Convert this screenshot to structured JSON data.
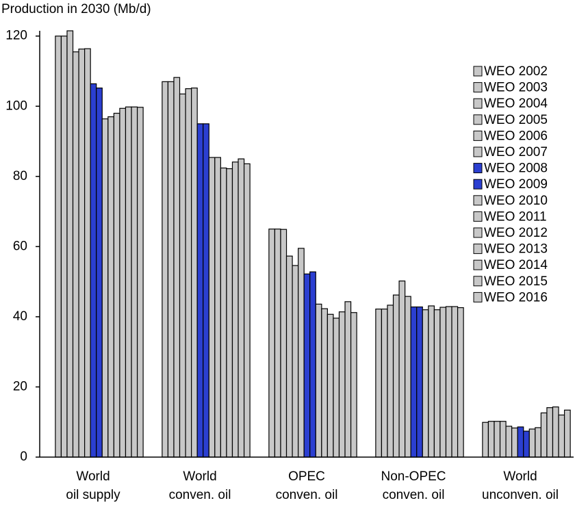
{
  "chart_data": {
    "type": "bar",
    "title": "Production in 2030 (Mb/d)",
    "categories": [
      "World\noil supply",
      "World\nconven. oil",
      "OPEC\nconven. oil",
      "Non-OPEC\nconven. oil",
      "World\nunconven. oil"
    ],
    "ylim": [
      0,
      121.5
    ],
    "yticks": [
      0,
      20,
      40,
      60,
      80,
      100,
      120
    ],
    "series": [
      {
        "name": "WEO 2002",
        "color": "#c8c8c8",
        "values": [
          120,
          107,
          65,
          42.2,
          9.9
        ]
      },
      {
        "name": "WEO 2003",
        "color": "#c8c8c8",
        "values": [
          120,
          107,
          65,
          42.2,
          10.2
        ]
      },
      {
        "name": "WEO 2004",
        "color": "#c8c8c8",
        "values": [
          121.5,
          108.2,
          64.9,
          43.3,
          10.2
        ]
      },
      {
        "name": "WEO 2005",
        "color": "#c8c8c8",
        "values": [
          115.5,
          103.5,
          57.3,
          46.2,
          10.2
        ]
      },
      {
        "name": "WEO 2006",
        "color": "#c8c8c8",
        "values": [
          116.3,
          105,
          54.6,
          50.2,
          8.8
        ]
      },
      {
        "name": "WEO 2007",
        "color": "#c8c8c8",
        "values": [
          116.4,
          105.2,
          59.5,
          45.8,
          8.3
        ]
      },
      {
        "name": "WEO 2008",
        "color": "#2b3fd1",
        "values": [
          106.4,
          95,
          52.2,
          42.8,
          8.6
        ]
      },
      {
        "name": "WEO 2009",
        "color": "#2b3fd1",
        "values": [
          105.2,
          95,
          52.8,
          42.8,
          7.4
        ]
      },
      {
        "name": "WEO 2010",
        "color": "#c8c8c8",
        "values": [
          96.4,
          85.4,
          43.6,
          42,
          8
        ]
      },
      {
        "name": "WEO 2011",
        "color": "#c8c8c8",
        "values": [
          97,
          85.4,
          42.3,
          43.1,
          8.4
        ]
      },
      {
        "name": "WEO 2012",
        "color": "#c8c8c8",
        "values": [
          98,
          82.4,
          40.7,
          42,
          12.6
        ]
      },
      {
        "name": "WEO 2013",
        "color": "#c8c8c8",
        "values": [
          99.4,
          82.2,
          39.6,
          42.7,
          14.1
        ]
      },
      {
        "name": "WEO 2014",
        "color": "#c8c8c8",
        "values": [
          99.8,
          84.1,
          41.4,
          42.9,
          14.3
        ]
      },
      {
        "name": "WEO 2015",
        "color": "#c8c8c8",
        "values": [
          99.8,
          85,
          44.3,
          42.9,
          12
        ]
      },
      {
        "name": "WEO 2016",
        "color": "#c8c8c8",
        "values": [
          99.7,
          83.6,
          41.2,
          42.6,
          13.4
        ]
      }
    ]
  }
}
